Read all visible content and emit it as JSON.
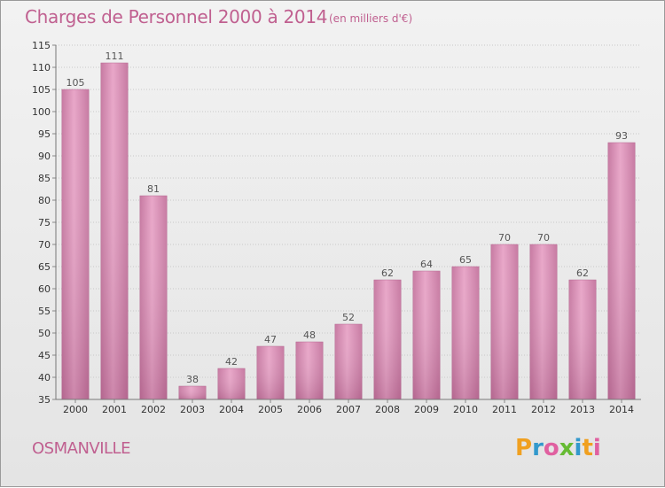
{
  "chart_data": {
    "type": "bar",
    "title": "Charges de Personnel 2000 à 2014",
    "subtitle": "(en milliers d'€)",
    "xlabel": "",
    "ylabel": "",
    "ylim": [
      35,
      115
    ],
    "yticks": [
      35,
      40,
      45,
      50,
      55,
      60,
      65,
      70,
      75,
      80,
      85,
      90,
      95,
      100,
      105,
      110,
      115
    ],
    "categories": [
      "2000",
      "2001",
      "2002",
      "2003",
      "2004",
      "2005",
      "2006",
      "2007",
      "2008",
      "2009",
      "2010",
      "2011",
      "2012",
      "2013",
      "2014"
    ],
    "values": [
      105,
      111,
      81,
      38,
      42,
      47,
      48,
      52,
      62,
      64,
      65,
      70,
      70,
      62,
      93
    ],
    "grid": true,
    "bar_color": "#d98cb3"
  },
  "footer": {
    "commune": "OSMANVILLE",
    "logo": {
      "letters": [
        "P",
        "r",
        "o",
        "x",
        "i",
        "t",
        "i"
      ],
      "colors": [
        "#f0a020",
        "#3399cc",
        "#e060a0",
        "#66bb33",
        "#3399cc",
        "#f0a020",
        "#e060a0"
      ]
    }
  }
}
